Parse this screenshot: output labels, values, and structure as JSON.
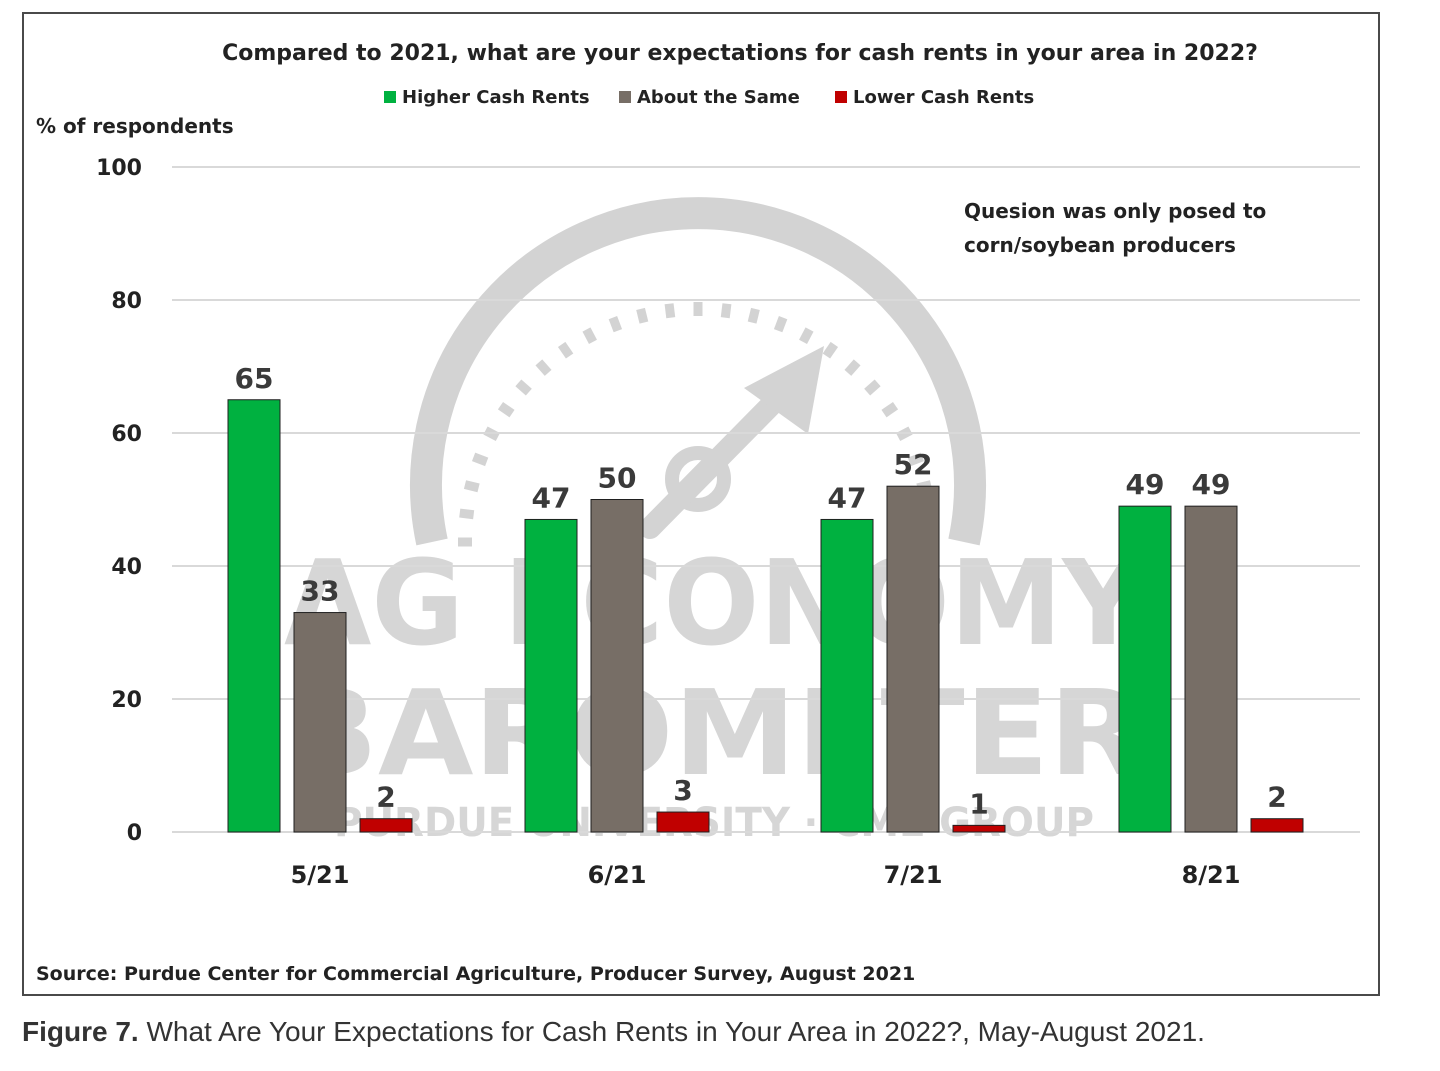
{
  "chart_data": {
    "type": "bar",
    "title": "Compared to 2021, what are your expectations for cash rents in your area in 2022?",
    "ylabel": "% of respondents",
    "xlabel": "",
    "ylim": [
      0,
      100
    ],
    "yticks": [
      0,
      20,
      40,
      60,
      80,
      100
    ],
    "grid": true,
    "legend_position": "top",
    "categories": [
      "5/21",
      "6/21",
      "7/21",
      "8/21"
    ],
    "series": [
      {
        "name": "Higher Cash Rents",
        "values": [
          65,
          47,
          47,
          49
        ],
        "color": "#00b140"
      },
      {
        "name": "About the Same",
        "values": [
          33,
          50,
          52,
          49
        ],
        "color": "#776e66"
      },
      {
        "name": "Lower Cash Rents",
        "values": [
          2,
          3,
          1,
          2
        ],
        "color": "#c00000"
      }
    ],
    "data_labels": [
      [
        "65",
        "47",
        "47",
        "49"
      ],
      [
        "33",
        "50",
        "52",
        "49"
      ],
      [
        "2",
        "3",
        "1",
        "2"
      ]
    ],
    "annotation": [
      "Quesion was only posed to",
      "corn/soybean producers"
    ],
    "source": "Source: Purdue Center for Commercial Agriculture, Producer Survey, August 2021"
  },
  "watermark": {
    "line1": "AG ECONOMY",
    "line2": "BAROMETER",
    "line3": "PURDUE UNIVERSITY · CME GROUP"
  },
  "caption": {
    "label": "Figure 7.",
    "text": " What Are Your Expectations for Cash Rents in Your Area in 2022?, May-August 2021."
  }
}
